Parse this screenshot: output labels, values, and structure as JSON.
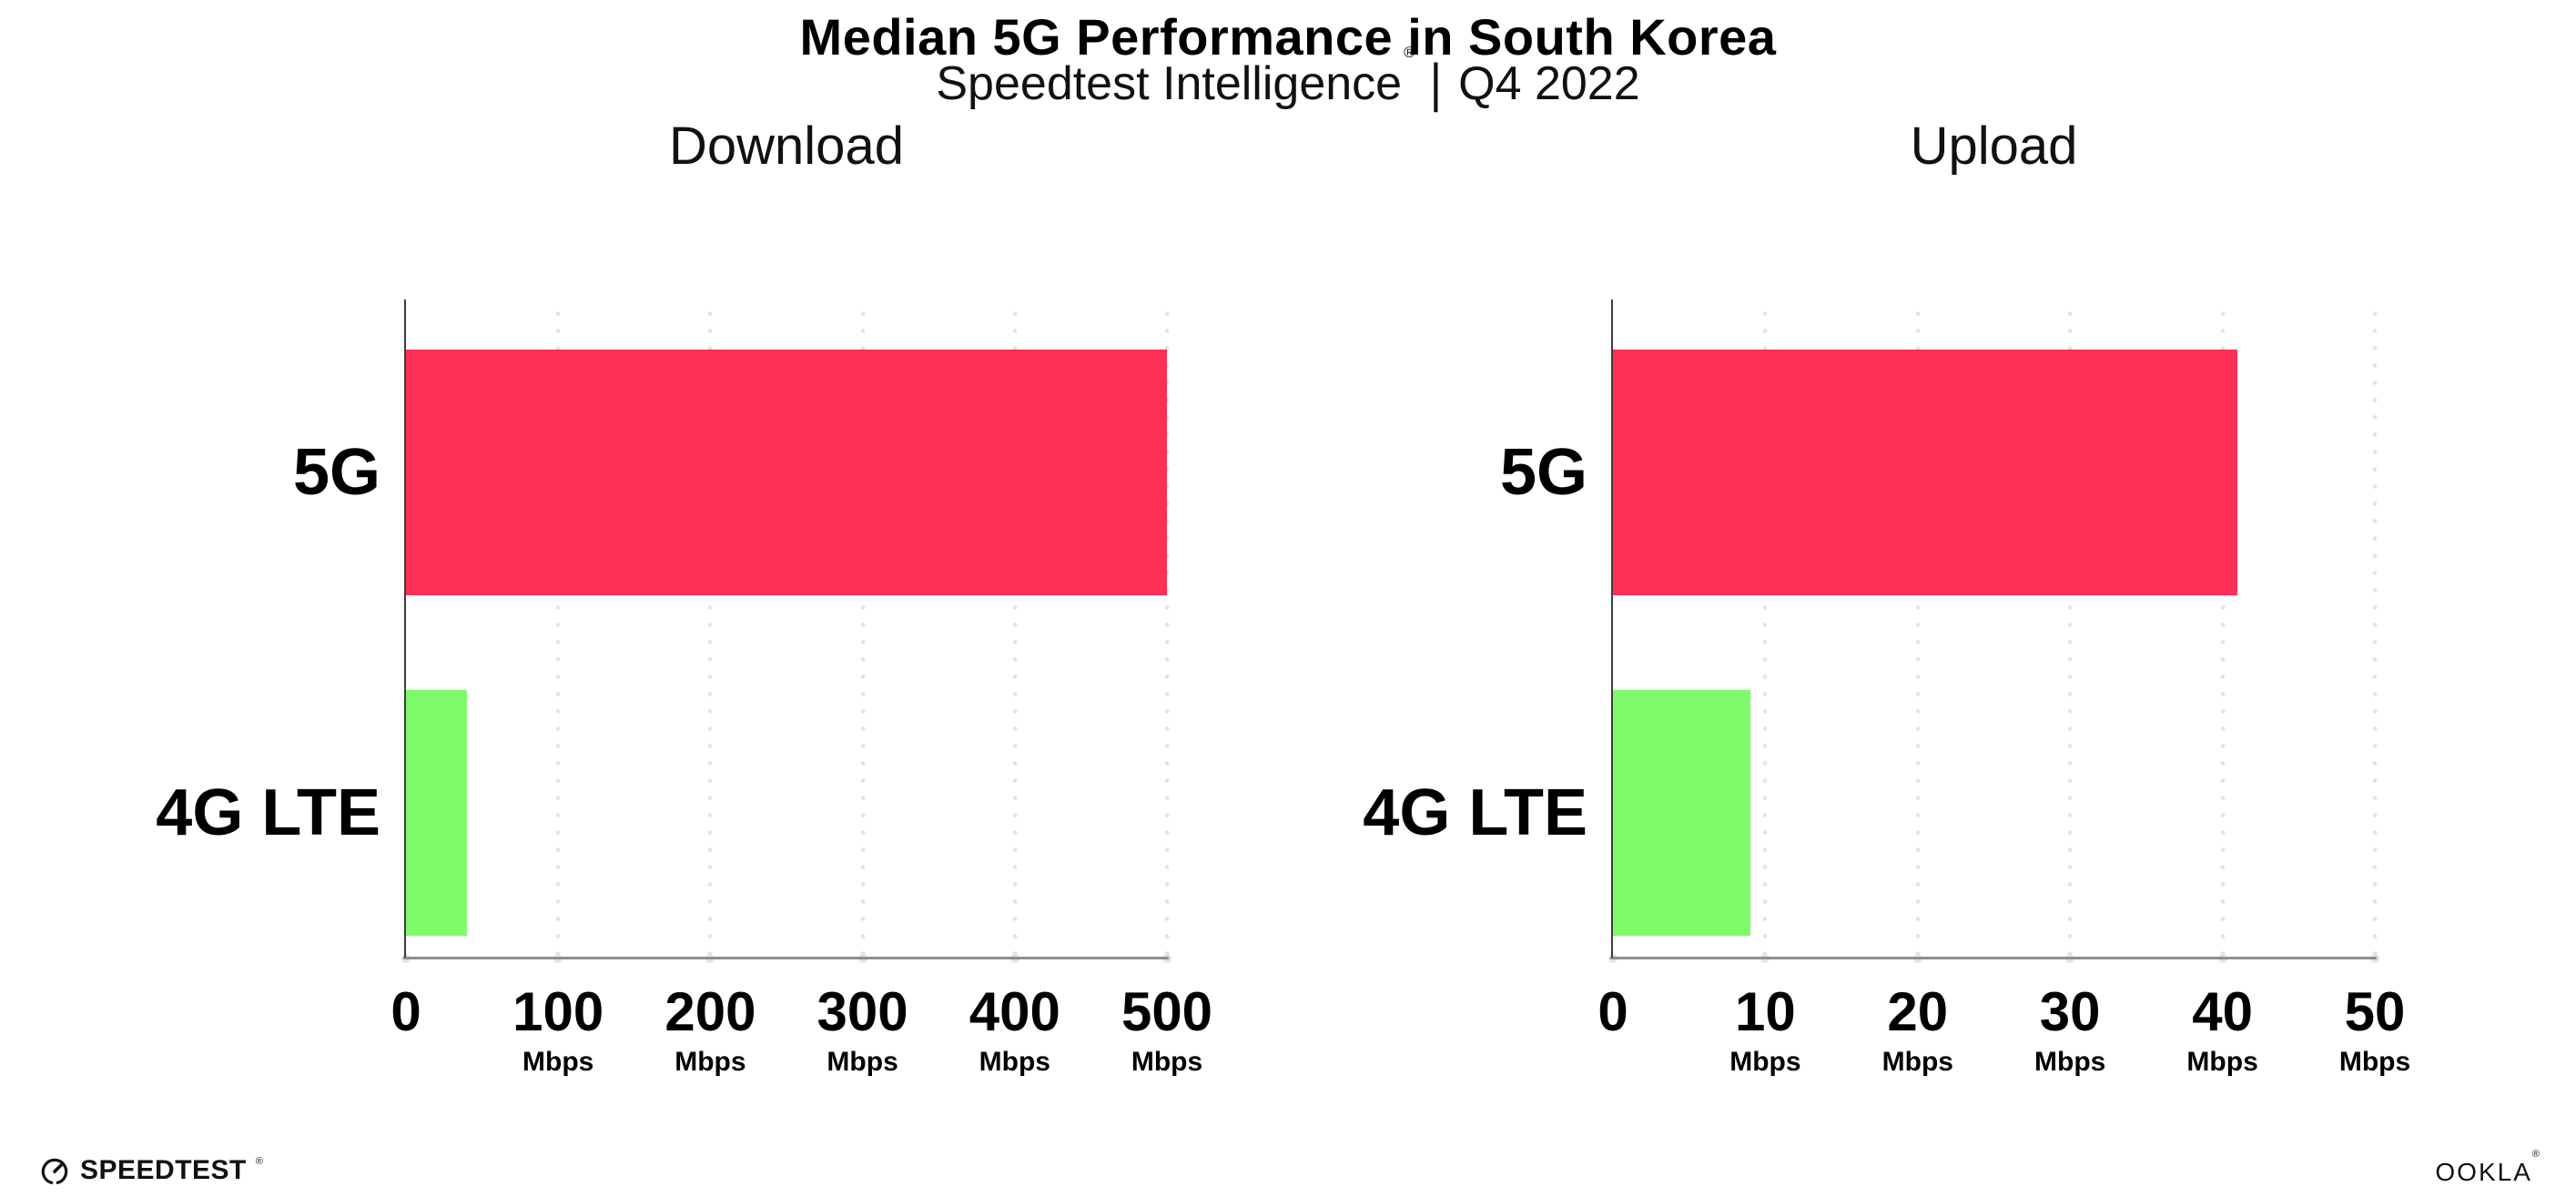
{
  "header": {
    "title": "Median 5G Performance in South Korea",
    "subtitle_product": "Speedtest Intelligence",
    "subtitle_reg": "®",
    "subtitle_separator": "|",
    "subtitle_period": "Q4 2022"
  },
  "chart_data": [
    {
      "type": "bar",
      "orientation": "horizontal",
      "title": "Download",
      "categories": [
        "5G",
        "4G LTE"
      ],
      "values": [
        500,
        40
      ],
      "unit": "Mbps",
      "xlabel": "",
      "ylabel": "",
      "xlim": [
        0,
        500
      ],
      "xticks": [
        0,
        100,
        200,
        300,
        400,
        500
      ],
      "grid": "vertical-dotted",
      "legend": "none",
      "bar_colors": [
        "#FF2E56",
        "#7EFB68"
      ]
    },
    {
      "type": "bar",
      "orientation": "horizontal",
      "title": "Upload",
      "categories": [
        "5G",
        "4G LTE"
      ],
      "values": [
        41,
        9
      ],
      "unit": "Mbps",
      "xlabel": "",
      "ylabel": "",
      "xlim": [
        0,
        50
      ],
      "xticks": [
        0,
        10,
        20,
        30,
        40,
        50
      ],
      "grid": "vertical-dotted",
      "legend": "none",
      "bar_colors": [
        "#FF2E56",
        "#7EFB68"
      ]
    }
  ],
  "footer": {
    "speedtest_wordmark": "SPEEDTEST",
    "speedtest_reg": "®",
    "ookla_wordmark": "OOKLA",
    "ookla_reg": "®"
  },
  "colors": {
    "bar_5g": "#FF2E56",
    "bar_4g_lte": "#7EFB68",
    "grid_dot": "#e3e3ee",
    "axis_dark": "#3d3d3d",
    "axis_gray": "#8f8f8f",
    "background": "#ffffff"
  }
}
